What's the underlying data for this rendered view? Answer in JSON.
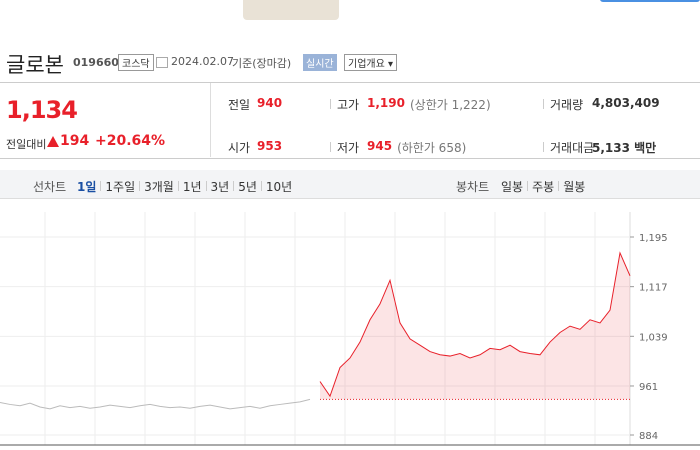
{
  "header": {
    "name": "글로본",
    "code": "019660",
    "market": "코스닥",
    "date": "2024.02.07",
    "basis": "기준(장마감)",
    "realtime": "실시간",
    "company_info": "기업개요"
  },
  "summary": {
    "price": "1,134",
    "change_label": "전일대비",
    "change": "194",
    "change_rate": "+20.64%",
    "rows": [
      [
        [
          "전일",
          "940",
          ""
        ],
        [
          "고가",
          "1,190",
          "(상한가 1,222)"
        ],
        [
          "거래량",
          "4,803,409",
          ""
        ]
      ],
      [
        [
          "시가",
          "953",
          ""
        ],
        [
          "저가",
          "945",
          "(하한가 658)"
        ],
        [
          "거래대금",
          "5,133 백만",
          ""
        ]
      ]
    ]
  },
  "tabs": {
    "line": {
      "label": "선차트",
      "items": [
        "1일",
        "1주일",
        "3개월",
        "1년",
        "3년",
        "5년",
        "10년"
      ]
    },
    "candle": {
      "label": "봉차트",
      "items": [
        "일봉",
        "주봉",
        "월봉"
      ]
    }
  },
  "chart_data": {
    "type": "line",
    "ylim": [
      884,
      1195
    ],
    "yticks": [
      884,
      961,
      {
        "value": 1039,
        "label": "1,039"
      },
      {
        "value": 1117,
        "label": "1,117"
      },
      {
        "value": 1195,
        "label": "1,195"
      }
    ],
    "baseline": 940,
    "fill": true,
    "series": [
      {
        "color": "#bbbbbb",
        "values": [
          935,
          932,
          930,
          934,
          928,
          925,
          930,
          927,
          929,
          926,
          928,
          931,
          929,
          927,
          930,
          932,
          929,
          927,
          928,
          926,
          929,
          931,
          928,
          925,
          927,
          929,
          926,
          930,
          932,
          934,
          936,
          940,
          null,
          null,
          null,
          null,
          null,
          null,
          null,
          null,
          null,
          null,
          null,
          null,
          null,
          null,
          null,
          null,
          null,
          null,
          null,
          null,
          null,
          null,
          null,
          null,
          null,
          null,
          null,
          null,
          null,
          null,
          null,
          null
        ]
      },
      {
        "color": "#e8202a",
        "values": [
          null,
          null,
          null,
          null,
          null,
          null,
          null,
          null,
          null,
          null,
          null,
          null,
          null,
          null,
          null,
          null,
          null,
          null,
          null,
          null,
          null,
          null,
          null,
          null,
          null,
          null,
          null,
          null,
          null,
          null,
          null,
          null,
          968,
          945,
          990,
          1005,
          1030,
          1065,
          1090,
          1127,
          1060,
          1035,
          1025,
          1015,
          1010,
          1008,
          1012,
          1005,
          1010,
          1020,
          1018,
          1025,
          1015,
          1012,
          1010,
          1030,
          1045,
          1055,
          1050,
          1065,
          1060,
          1080,
          1170,
          1134
        ]
      }
    ]
  }
}
